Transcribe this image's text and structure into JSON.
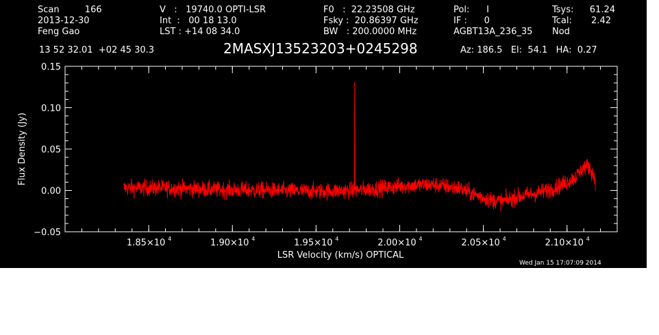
{
  "header": {
    "col1": [
      "Scan         166",
      "2013-12-30",
      "Feng Gao"
    ],
    "col2": [
      "V   :   19740.0 OPTI-LSR",
      "Int  :   00 18 13.0",
      "LST : +14 08 34.0"
    ],
    "col3": [
      "F0   :  22.23508 GHz",
      "Fsky :  20.86397 GHz",
      "BW   : 200.0000 MHz"
    ],
    "col4": [
      "Pol:      I",
      "IF :      0",
      "AGBT13A_236_35"
    ],
    "col5_labels": [
      "Tsys:",
      "Tcal:",
      "Nod"
    ],
    "col5_values": [
      "61.24",
      "2.42",
      ""
    ],
    "coords": "13 52 32.01  +02 45 30.3",
    "source": "2MASXJ13523203+0245298",
    "azelha": "Az: 186.5   El:  54.1   HA:  0.27"
  },
  "timestamp": "Wed Jan 15 17:07:09 2014",
  "colors": {
    "background": "#000000",
    "axes": "#ffffff",
    "series": "#ff0000"
  },
  "chart_data": {
    "type": "line",
    "title": "2MASXJ13523203+0245298",
    "xlabel": "LSR Velocity (km/s) OPTICAL",
    "ylabel": "Flux Density (Jy)",
    "xlim": [
      18000,
      21300
    ],
    "ylim": [
      -0.05,
      0.15
    ],
    "xticks": [
      18500,
      19000,
      19500,
      20000,
      20500,
      21000
    ],
    "xtick_labels": [
      "1.85×10",
      "1.90×10",
      "1.95×10",
      "2.00×10",
      "2.05×10",
      "2.10×10"
    ],
    "xtick_exponent": "4",
    "yticks": [
      -0.05,
      0,
      0.05,
      0.1,
      0.15
    ],
    "ytick_labels": [
      "−0.05",
      "0.00",
      "0.05",
      "0.10",
      "0.15"
    ],
    "grid": false,
    "series": [
      {
        "x_range": [
          18350,
          21170
        ],
        "baseline_x": [
          18350,
          18600,
          18900,
          19200,
          19500,
          19730,
          19900,
          20050,
          20200,
          20350,
          20450,
          20550,
          20620,
          20700,
          20800,
          20880,
          20950,
          21050,
          21100,
          21130,
          21150,
          21170
        ],
        "baseline_y": [
          0.003,
          0.003,
          0.001,
          0.0,
          -0.001,
          0.0,
          0.003,
          0.006,
          0.007,
          0.003,
          -0.005,
          -0.012,
          -0.013,
          -0.008,
          -0.004,
          0.0,
          0.005,
          0.016,
          0.028,
          0.029,
          0.022,
          0.012
        ],
        "noise_rms": 0.005,
        "spike_x": 19730,
        "spike_y": 0.131
      }
    ]
  }
}
